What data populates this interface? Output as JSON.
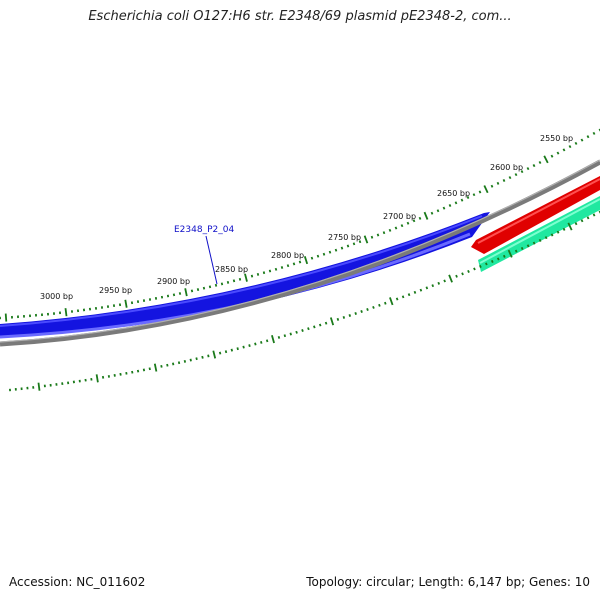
{
  "title": "Escherichia coli O127:H6 str. E2348/69 plasmid pE2348-2, com...",
  "footer": {
    "accession": "Accession: NC_011602",
    "summary": "Topology: circular; Length: 6,147 bp; Genes: 10"
  },
  "colors": {
    "forward_gene": "#1414e0",
    "reverse_gene_red": "#e00000",
    "reverse_gene_green": "#20e8a0",
    "backbone": "#7a7a7a",
    "ticks": "#1a7a1a",
    "gene_label": "#1010c8"
  },
  "scale": {
    "unit": "bp",
    "tick_labels": [
      "2550 bp",
      "2600 bp",
      "2650 bp",
      "2700 bp",
      "2750 bp",
      "2800 bp",
      "2850 bp",
      "2900 bp",
      "2950 bp",
      "3000 bp"
    ]
  },
  "features": [
    {
      "name": "E2348_P2_04",
      "strand": "forward",
      "color": "forward_gene"
    },
    {
      "name": "",
      "strand": "reverse",
      "color": "reverse_gene_red"
    },
    {
      "name": "",
      "strand": "reverse",
      "color": "reverse_gene_green"
    }
  ]
}
